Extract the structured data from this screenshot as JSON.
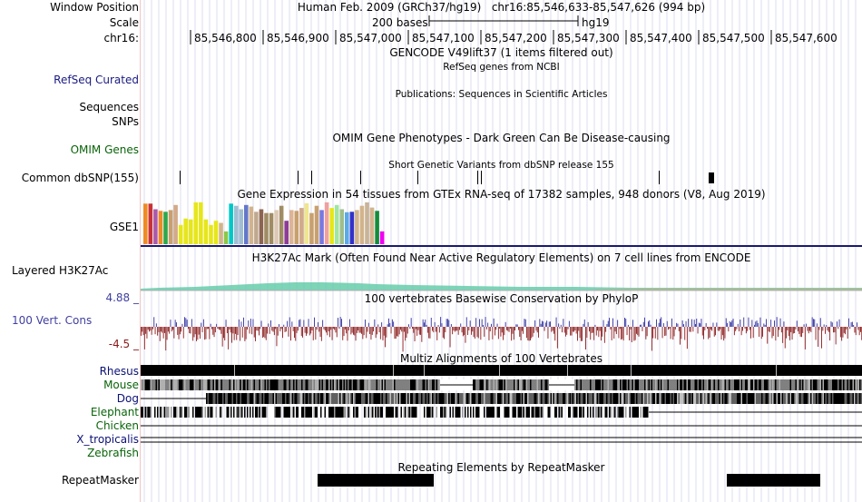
{
  "header": {
    "window_position_label": "Window Position",
    "scale_label": "Scale",
    "chrom_label": "chr16:",
    "assembly_text": "Human Feb. 2009 (GRCh37/hg19)",
    "position_text": "chr16:85,546,633-85,547,626 (994 bp)",
    "scale_bar_text": "200 bases",
    "scale_assembly": "hg19",
    "ruler_ticks": [
      "85,546,800",
      "85,546,900",
      "85,547,000",
      "85,547,100",
      "85,547,200",
      "85,547,300",
      "85,547,400",
      "85,547,500",
      "85,547,600"
    ]
  },
  "tracks": {
    "gencode": {
      "title": "GENCODE V49lift37 (1 items filtered out)"
    },
    "refseq": {
      "label": "RefSeq Curated",
      "title": "RefSeq genes from NCBI"
    },
    "publications": {
      "title": "Publications: Sequences in Scientific Articles"
    },
    "sequences": {
      "label": "Sequences"
    },
    "snps": {
      "label": "SNPs"
    },
    "omim": {
      "label": "OMIM Genes",
      "title": "OMIM Gene Phenotypes - Dark Green Can Be Disease-causing"
    },
    "dbsnp": {
      "label": "Common dbSNP(155)",
      "title": "Short Genetic Variants from dbSNP release 155"
    },
    "gtex": {
      "label": "GSE1",
      "title": "Gene Expression in 54 tissues from GTEx RNA-seq of 17382 samples, 948 donors (V8, Aug 2019)"
    },
    "h3k27ac": {
      "label": "Layered H3K27Ac",
      "title": "H3K27Ac Mark (Often Found Near Active Regulatory Elements) on 7 cell lines from ENCODE"
    },
    "phylop": {
      "label": "100 Vert. Cons",
      "title": "100 vertebrates Basewise Conservation by PhyloP",
      "max_label": "4.88 _",
      "min_label": "-4.5 _"
    },
    "multiz": {
      "title": "Multiz Alignments of 100 Vertebrates",
      "species": [
        "Rhesus",
        "Mouse",
        "Dog",
        "Elephant",
        "Chicken",
        "X_tropicalis",
        "Zebrafish"
      ]
    },
    "repeatmasker": {
      "label": "RepeatMasker",
      "title": "Repeating Elements by RepeatMasker"
    }
  },
  "colors": {
    "track_blue": "#1a1a80",
    "omim_green": "#0a640a",
    "cons_blue": "#4040a0",
    "cons_red": "#8a1a1a",
    "gridline": "#dcdcf0",
    "separator": "#f4c4c4",
    "gtex_baseline": "#1a1a6e",
    "h3k27ac_fill": "#66ccaa"
  },
  "gtex_values": [
    0.95,
    0.95,
    0.82,
    0.78,
    0.76,
    0.8,
    0.92,
    0.45,
    0.6,
    0.58,
    0.98,
    0.98,
    0.58,
    0.45,
    0.55,
    0.5,
    0.3,
    0.95,
    0.9,
    0.82,
    0.92,
    0.88,
    0.76,
    0.82,
    0.73,
    0.73,
    0.8,
    0.9,
    0.55,
    0.8,
    0.78,
    0.85,
    0.96,
    0.73,
    0.9,
    0.8,
    0.98,
    0.85,
    0.92,
    0.82,
    0.75,
    0.76,
    0.8,
    0.9,
    0.98,
    0.86,
    0.78,
    0.3
  ],
  "gtex_colors": [
    "#f08a24",
    "#c83236",
    "#aa5aaa",
    "#f08a24",
    "#2ea84a",
    "#c8a070",
    "#d2aa88",
    "#e6e61a",
    "#e6e61a",
    "#e6e61a",
    "#e6e61a",
    "#e6e61a",
    "#e6e61a",
    "#e6e61a",
    "#e6e61a",
    "#d2b48c",
    "#8cc84a",
    "#00c8c8",
    "#a0bed2",
    "#a0bed2",
    "#6478c8",
    "#d2b48c",
    "#c0a890",
    "#8c6450",
    "#a08c64",
    "#a08c64",
    "#dcc8b4",
    "#a08c64",
    "#8c3c96",
    "#dcb496",
    "#c8a070",
    "#d2aa88",
    "#f0e68c",
    "#c8a070",
    "#c8a070",
    "#7878e0",
    "#f0a0a0",
    "#e6e61a",
    "#a0e6a0",
    "#a0be8c",
    "#5aaae6",
    "#3232c8",
    "#d2b48c",
    "#d2b48c",
    "#c8b496",
    "#d2b48c",
    "#148c3c",
    "#f000f0"
  ]
}
